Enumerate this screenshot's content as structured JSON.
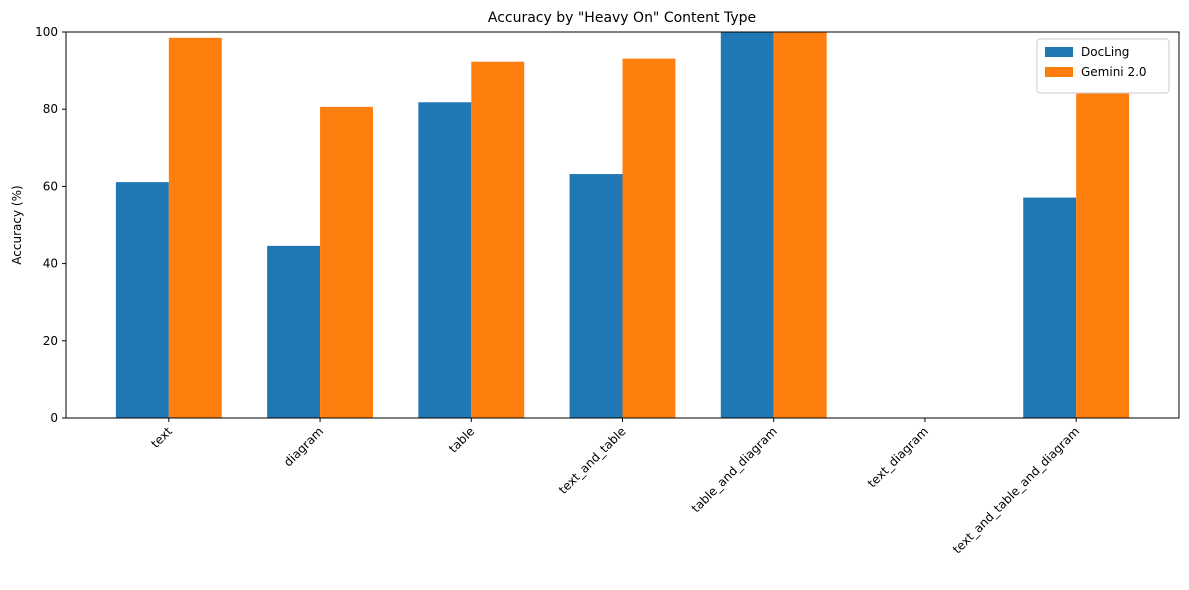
{
  "chart_data": {
    "type": "bar",
    "title": "Accuracy by \"Heavy On\" Content Type",
    "y_label": "Accuracy (%)",
    "categories": [
      "text",
      "diagram",
      "table",
      "text_and_table",
      "table_and_diagram",
      "text_diagram",
      "text_and_table_and_diagram"
    ],
    "series": [
      {
        "name": "DocLing",
        "color": "#1f77b4",
        "values": [
          61.1,
          44.6,
          81.8,
          63.2,
          100,
          0,
          57.1
        ]
      },
      {
        "name": "Gemini 2.0",
        "color": "#ff7f0e",
        "values": [
          98.5,
          80.6,
          92.3,
          93.1,
          100,
          0,
          85.7
        ]
      }
    ],
    "ylim": [
      0,
      100
    ],
    "yticks": [
      0,
      20,
      40,
      60,
      80,
      100
    ],
    "legend": "upper right"
  }
}
